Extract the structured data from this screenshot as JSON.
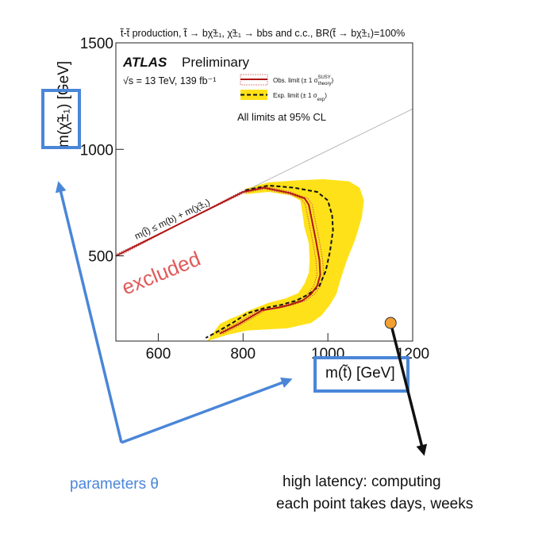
{
  "header": {
    "title": "t̃-t̃ production, t̃ → bχ̃±₁, χ̃±₁ → bbs and c.c., BR(t̃ → bχ̃±₁)=100%"
  },
  "legend": {
    "experiment": "ATLAS",
    "status": "Preliminary",
    "energy": "√s = 13 TeV, 139 fb⁻¹",
    "obs_label": "Obs. limit (± 1 σ",
    "obs_sup": "SUSY",
    "obs_sub": "theory",
    "exp_label": "Exp. limit (± 1 σ",
    "exp_sub": "exp",
    "cl_note": "All limits at 95% CL",
    "colors": {
      "observed": "#b01515",
      "expected": "#111111",
      "band": "#ffe119"
    }
  },
  "plot_annotations": {
    "kinematic_label": "m(t̃) ≤ m(b) + m(χ̃±₁)",
    "excluded_label": "excluded",
    "excluded_color": "#e05b5b",
    "point_color": "#f4a030"
  },
  "axes": {
    "x_label": "m(t̃) [GeV]",
    "y_label": "m(χ̃±₁) [GeV]",
    "x_ticks": [
      "600",
      "800",
      "1000",
      "1200"
    ],
    "y_ticks": [
      "500",
      "1000",
      "1500"
    ]
  },
  "chart_data": {
    "type": "line",
    "title": "t̃-t̃ production, t̃ → bχ̃±₁, χ̃±₁ → bbs and c.c., BR(t̃ → bχ̃±₁)=100%",
    "xlabel": "m(t̃) [GeV]",
    "ylabel": "m(χ̃±₁) [GeV]",
    "xlim": [
      500,
      1200
    ],
    "ylim": [
      100,
      1500
    ],
    "grid": false,
    "legend_position": "top-left",
    "series": [
      {
        "name": "Obs. limit",
        "points": [
          [
            500,
            500
          ],
          [
            790,
            790
          ],
          [
            800,
            800
          ],
          [
            850,
            820
          ],
          [
            910,
            795
          ],
          [
            945,
            770
          ],
          [
            955,
            740
          ],
          [
            963,
            660
          ],
          [
            972,
            570
          ],
          [
            980,
            480
          ],
          [
            982,
            410
          ],
          [
            975,
            360
          ],
          [
            960,
            320
          ],
          [
            940,
            290
          ],
          [
            910,
            270
          ],
          [
            885,
            258
          ],
          [
            845,
            245
          ],
          [
            790,
            180
          ],
          [
            745,
            135
          ]
        ]
      },
      {
        "name": "Exp. limit",
        "points": [
          [
            805,
            808
          ],
          [
            860,
            830
          ],
          [
            920,
            820
          ],
          [
            975,
            800
          ],
          [
            1000,
            760
          ],
          [
            1010,
            690
          ],
          [
            1012,
            620
          ],
          [
            1005,
            520
          ],
          [
            995,
            430
          ],
          [
            980,
            360
          ],
          [
            955,
            320
          ],
          [
            925,
            290
          ],
          [
            890,
            270
          ],
          [
            850,
            255
          ],
          [
            810,
            230
          ],
          [
            775,
            185
          ],
          [
            740,
            145
          ],
          [
            712,
            115
          ]
        ]
      }
    ],
    "bands": [
      {
        "name": "Exp. limit (± 1 σexp)",
        "upper": [
          [
            805,
            815
          ],
          [
            860,
            845
          ],
          [
            930,
            855
          ],
          [
            990,
            860
          ],
          [
            1050,
            850
          ],
          [
            1075,
            820
          ],
          [
            1085,
            760
          ],
          [
            1080,
            680
          ],
          [
            1065,
            580
          ],
          [
            1045,
            480
          ],
          [
            1030,
            390
          ],
          [
            1020,
            320
          ],
          [
            1005,
            270
          ],
          [
            985,
            220
          ],
          [
            960,
            185
          ],
          [
            905,
            160
          ],
          [
            810,
            150
          ],
          [
            765,
            130
          ],
          [
            715,
            100
          ]
        ],
        "lower": [
          [
            805,
            790
          ],
          [
            860,
            800
          ],
          [
            910,
            785
          ],
          [
            935,
            760
          ],
          [
            940,
            700
          ],
          [
            945,
            630
          ],
          [
            955,
            560
          ],
          [
            957,
            480
          ],
          [
            955,
            420
          ],
          [
            945,
            370
          ],
          [
            930,
            325
          ],
          [
            900,
            300
          ],
          [
            860,
            280
          ],
          [
            810,
            240
          ],
          [
            790,
            220
          ],
          [
            770,
            205
          ],
          [
            745,
            180
          ]
        ]
      }
    ],
    "diagonal": [
      [
        800,
        800
      ],
      [
        1200,
        1190
      ]
    ],
    "highlight_point": {
      "x": 1148,
      "y": 185
    }
  },
  "captions": {
    "left": "parameters θ",
    "right_line1": "high latency: computing",
    "right_line2": "each point takes days, weeks"
  }
}
